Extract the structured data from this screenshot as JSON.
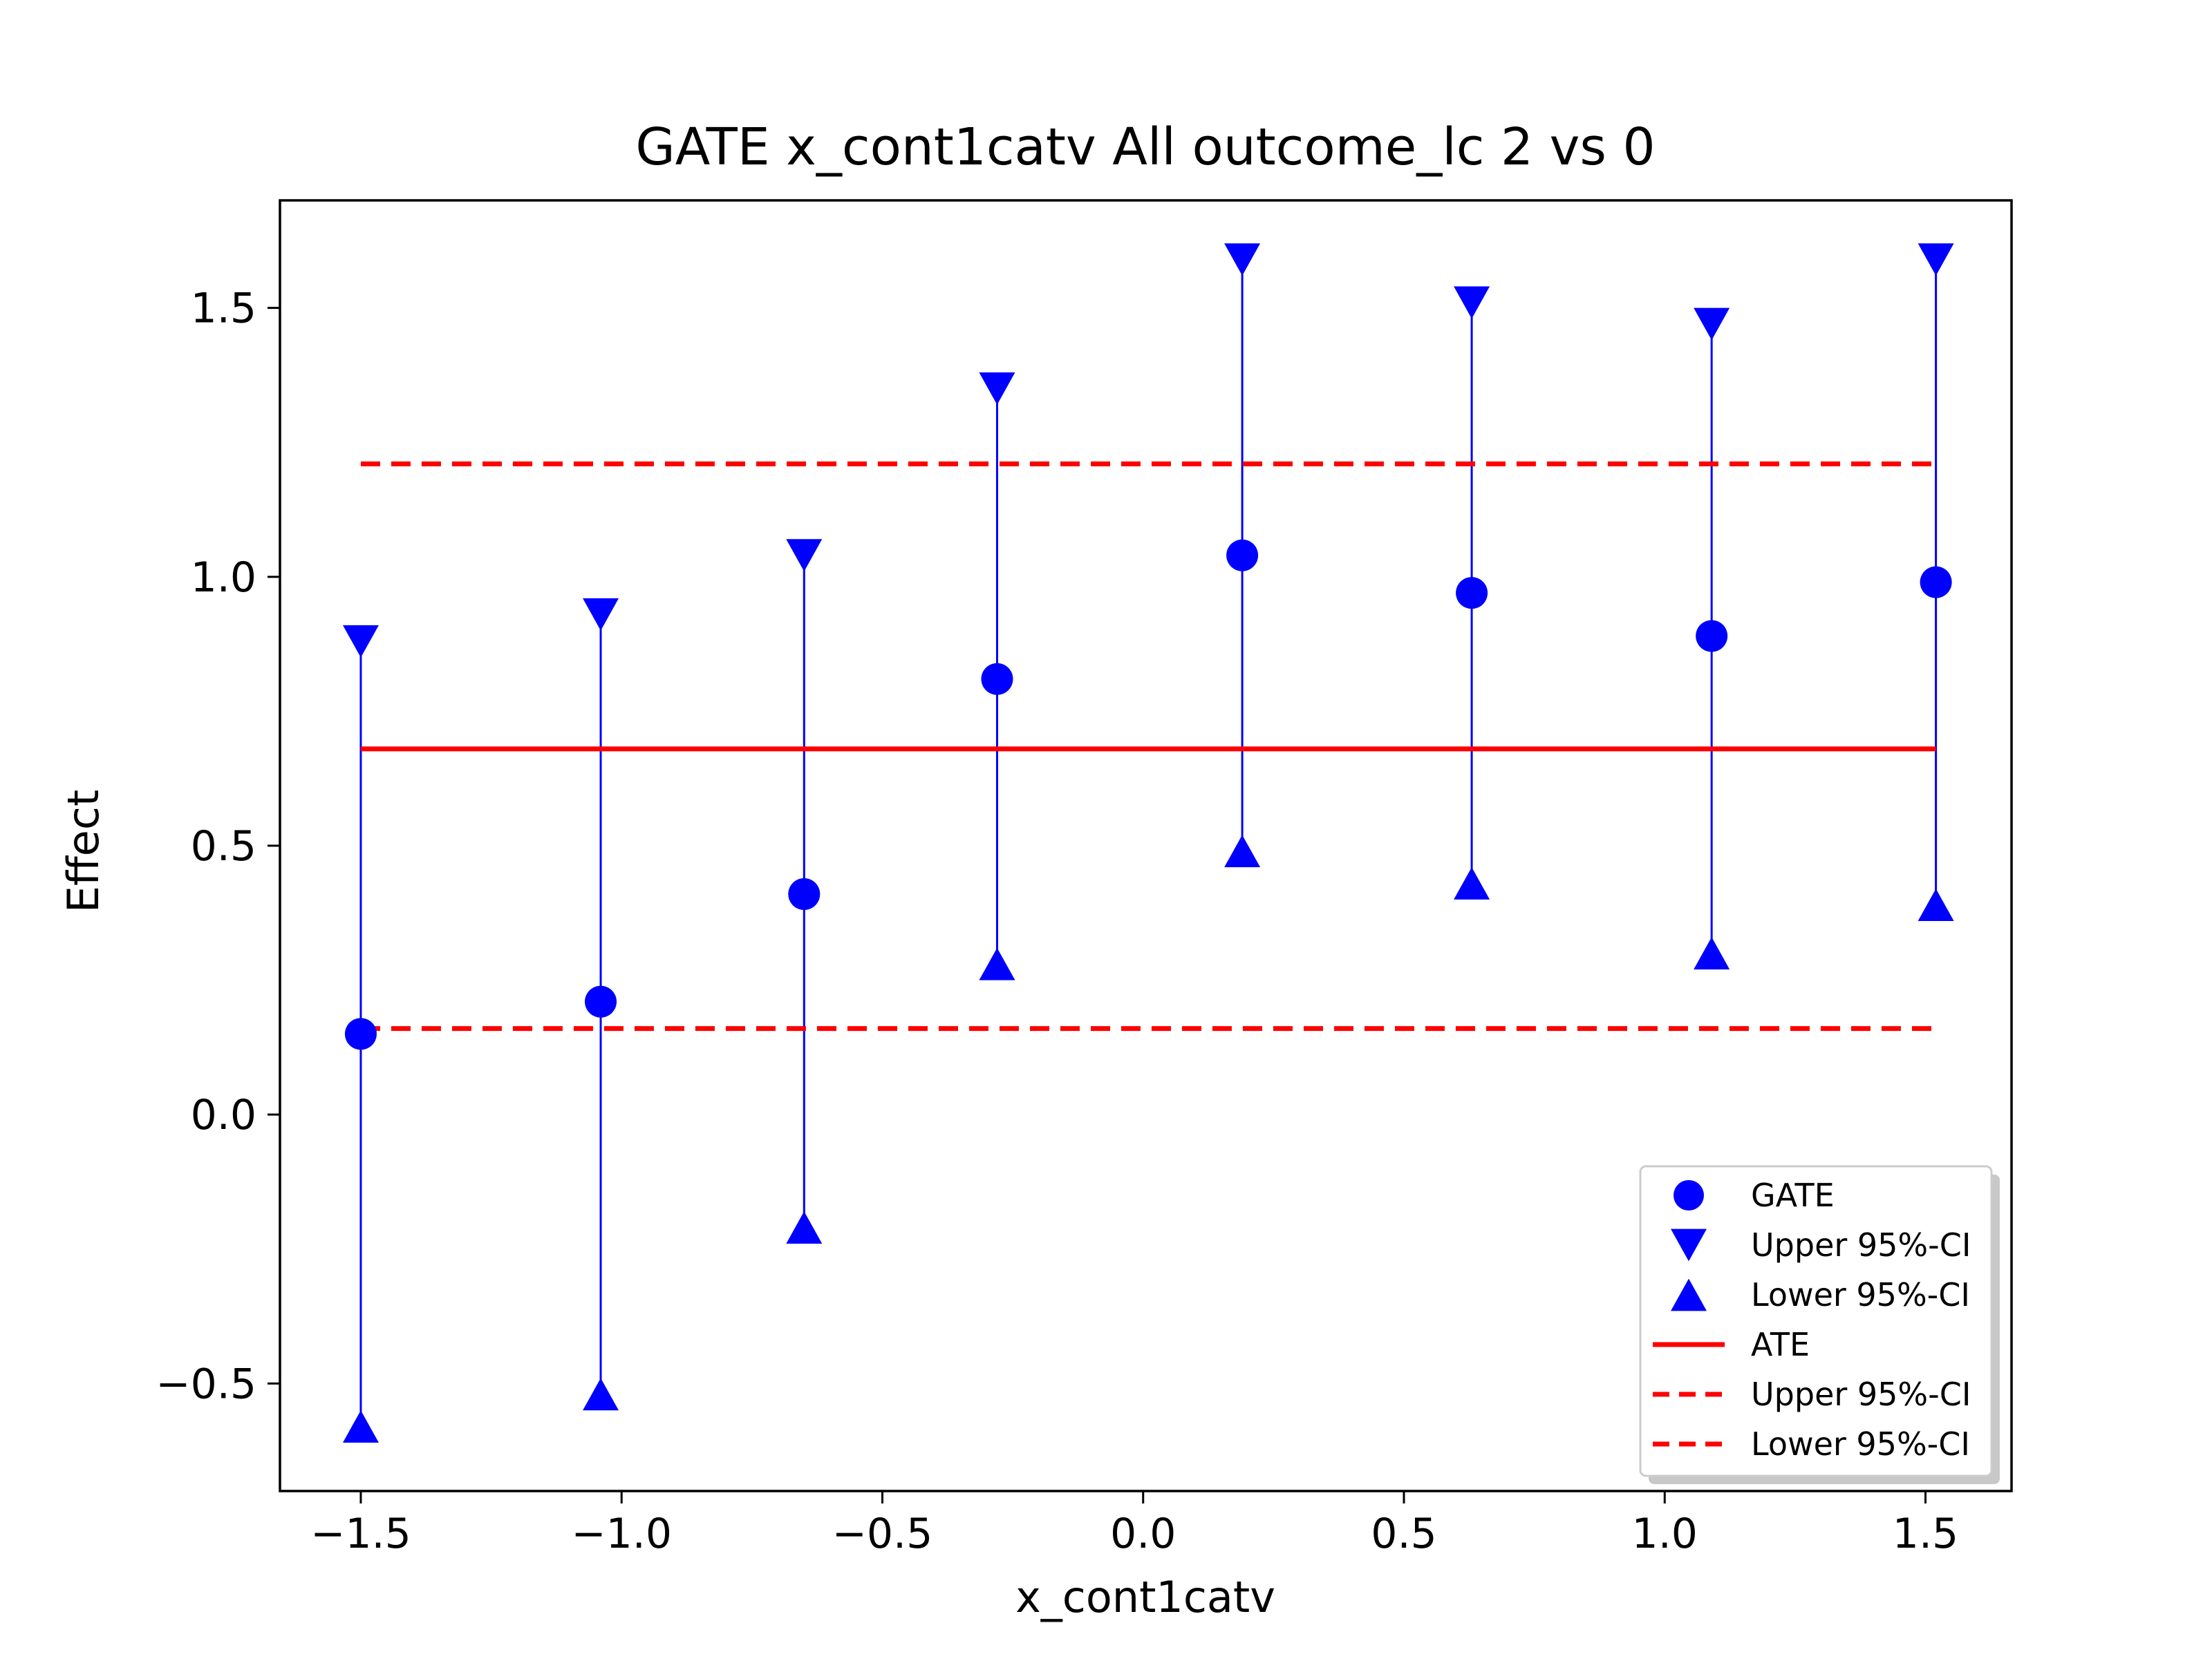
{
  "chart_data": {
    "type": "scatter",
    "title": "GATE x_cont1catv All outcome_lc  2 vs 0",
    "xlabel": "x_cont1catv",
    "ylabel": "Effect",
    "xlim": [
      -1.655,
      1.665
    ],
    "ylim": [
      -0.7,
      1.7
    ],
    "xticks": [
      -1.5,
      -1.0,
      -0.5,
      0.0,
      0.5,
      1.0,
      1.5
    ],
    "yticks": [
      -0.5,
      0.0,
      0.5,
      1.0,
      1.5
    ],
    "xtick_labels": [
      "−1.5",
      "−1.0",
      "−0.5",
      "0.0",
      "0.5",
      "1.0",
      "1.5"
    ],
    "ytick_labels": [
      "−0.5",
      "0.0",
      "0.5",
      "1.0",
      "1.5"
    ],
    "grid": false,
    "legend_position": "lower-right",
    "colors": {
      "gate": "#0000ff",
      "ate": "#ff0000",
      "errorbar": "#0000ff"
    },
    "x": [
      -1.5,
      -1.04,
      -0.65,
      -0.28,
      0.19,
      0.63,
      1.09,
      1.52
    ],
    "gate": [
      0.15,
      0.21,
      0.41,
      0.81,
      1.04,
      0.97,
      0.89,
      0.99
    ],
    "gate_upper": [
      0.88,
      0.93,
      1.04,
      1.35,
      1.59,
      1.51,
      1.47,
      1.59
    ],
    "gate_lower": [
      -0.58,
      -0.52,
      -0.21,
      0.28,
      0.49,
      0.43,
      0.3,
      0.39
    ],
    "ate": {
      "x_range": [
        -1.5,
        1.52
      ],
      "value": 0.68,
      "upper": 1.21,
      "lower": 0.16
    },
    "legend": [
      {
        "label": "GATE",
        "marker": "circle",
        "color": "#0000ff"
      },
      {
        "label": "Upper 95%-CI",
        "marker": "triangle-down",
        "color": "#0000ff"
      },
      {
        "label": "Lower 95%-CI",
        "marker": "triangle-up",
        "color": "#0000ff"
      },
      {
        "label": "ATE",
        "marker": "solid-line",
        "color": "#ff0000"
      },
      {
        "label": "Upper 95%-CI",
        "marker": "dashed-line",
        "color": "#ff0000"
      },
      {
        "label": "Lower 95%-CI",
        "marker": "dashed-line",
        "color": "#ff0000"
      }
    ]
  }
}
